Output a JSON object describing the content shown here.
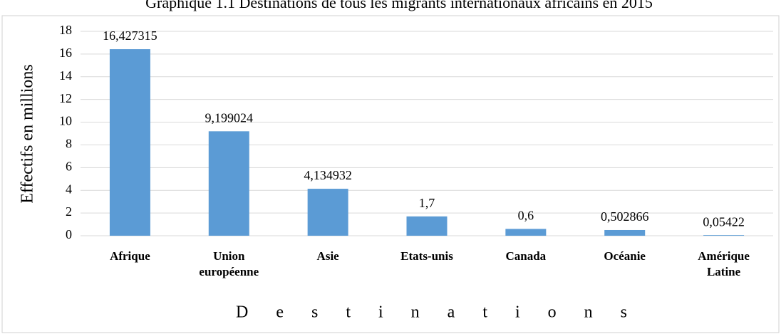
{
  "chart_data": {
    "type": "bar",
    "title": "Graphique 1.1 Destinations de tous les migrants internationaux africains en 2015",
    "y_label": "Effectifs en millions",
    "x_label": "Destinations",
    "categories": [
      "Afrique",
      "Union européenne",
      "Asie",
      "Etats-unis",
      "Canada",
      "Océanie",
      "Amérique Latine"
    ],
    "values": [
      16.427315,
      9.199024,
      4.134932,
      1.7,
      0.6,
      0.502866,
      0.05422
    ],
    "value_labels": [
      "16,427315",
      "9,199024",
      "4,134932",
      "1,7",
      "0,6",
      "0,502866",
      "0,05422"
    ],
    "color": "#5b9bd5",
    "ylim": [
      0,
      18
    ],
    "yticks": [
      0,
      2,
      4,
      6,
      8,
      10,
      12,
      14,
      16,
      18
    ],
    "grid": true
  }
}
